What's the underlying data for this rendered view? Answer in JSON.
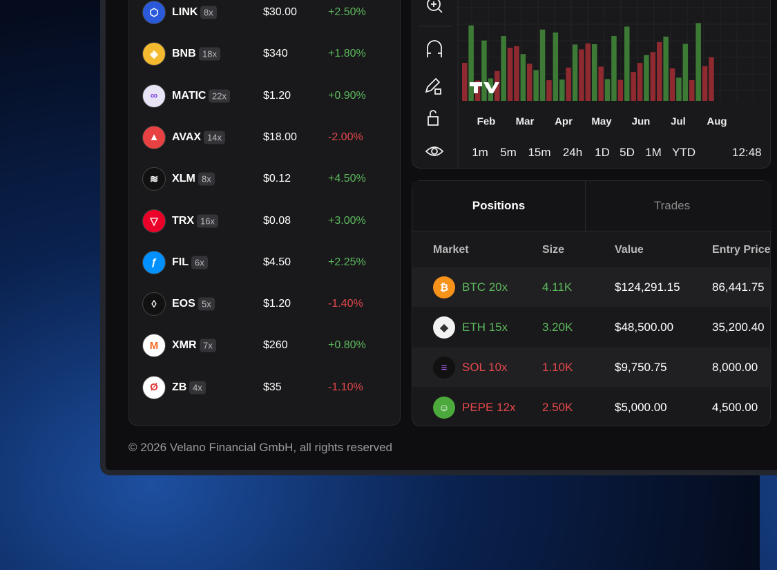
{
  "markets": [
    {
      "symbol": "LINK",
      "leverage": "8x",
      "price": "$30.00",
      "change": "+2.50%"
    },
    {
      "symbol": "BNB",
      "leverage": "18x",
      "price": "$340",
      "change": "+1.80%"
    },
    {
      "symbol": "MATIC",
      "leverage": "22x",
      "price": "$1.20",
      "change": "+0.90%"
    },
    {
      "symbol": "AVAX",
      "leverage": "14x",
      "price": "$18.00",
      "change": "-2.00%"
    },
    {
      "symbol": "XLM",
      "leverage": "8x",
      "price": "$0.12",
      "change": "+4.50%"
    },
    {
      "symbol": "TRX",
      "leverage": "16x",
      "price": "$0.08",
      "change": "+3.00%"
    },
    {
      "symbol": "FIL",
      "leverage": "6x",
      "price": "$4.50",
      "change": "+2.25%"
    },
    {
      "symbol": "EOS",
      "leverage": "5x",
      "price": "$1.20",
      "change": "-1.40%"
    },
    {
      "symbol": "XMR",
      "leverage": "7x",
      "price": "$260",
      "change": "+0.80%"
    },
    {
      "symbol": "ZB",
      "leverage": "4x",
      "price": "$35",
      "change": "-1.10%"
    }
  ],
  "chart": {
    "months": [
      "Feb",
      "Mar",
      "Apr",
      "May",
      "Jun",
      "Jul",
      "Aug"
    ],
    "timeframes": [
      "1m",
      "5m",
      "15m",
      "24h",
      "1D",
      "5D",
      "1M",
      "YTD"
    ],
    "time": "12:48"
  },
  "positions": {
    "tabs": [
      "Positions",
      "Trades"
    ],
    "columns": [
      "Market",
      "Size",
      "Value",
      "Entry Price"
    ],
    "rows": [
      {
        "market": "BTC 20x",
        "size": "4.11K",
        "value": "$124,291.15",
        "entry": "86,441.75",
        "color": "#5cb85c"
      },
      {
        "market": "ETH 15x",
        "size": "3.20K",
        "value": "$48,500.00",
        "entry": "35,200.40",
        "color": "#5cb85c"
      },
      {
        "market": "SOL 10x",
        "size": "1.10K",
        "value": "$9,750.75",
        "entry": "8,000.00",
        "color": "#e5484d"
      },
      {
        "market": "PEPE 12x",
        "size": "2.50K",
        "value": "$5,000.00",
        "entry": "4,500.00",
        "color": "#e5484d"
      }
    ]
  },
  "footer": "© 2026 Velano Financial GmbH, all rights reserved"
}
